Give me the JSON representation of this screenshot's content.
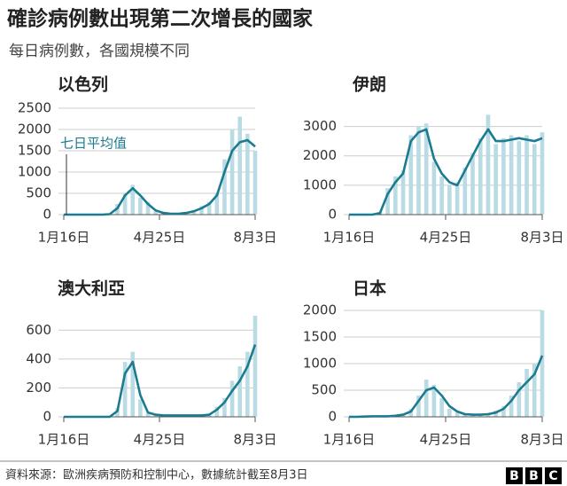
{
  "title": "確診病例數出現第二次增長的國家",
  "subtitle": "每日病例數，各國規模不同",
  "source": "資料來源：歐洲疾病預防和控制中心，數據統計截至8月3日",
  "logo": [
    "B",
    "B",
    "C"
  ],
  "chart_data": [
    {
      "type": "bar-line",
      "title": "以色列",
      "annotation": "七日平均值",
      "x": [
        0,
        8,
        16,
        24,
        32,
        40,
        48,
        56,
        64,
        72,
        80,
        88,
        96,
        104,
        112,
        120,
        128,
        136,
        144,
        152,
        160,
        168,
        176,
        184,
        192,
        200
      ],
      "bar_values": [
        0,
        0,
        0,
        0,
        0,
        0,
        20,
        250,
        500,
        700,
        400,
        300,
        80,
        30,
        10,
        20,
        60,
        100,
        200,
        300,
        500,
        1300,
        2000,
        2300,
        1900,
        1500
      ],
      "values": [
        0,
        0,
        0,
        0,
        0,
        0,
        10,
        150,
        450,
        620,
        450,
        250,
        100,
        40,
        20,
        20,
        40,
        80,
        150,
        250,
        450,
        1000,
        1500,
        1700,
        1750,
        1600
      ],
      "xlim": [
        0,
        200
      ],
      "xticks": [
        {
          "value": 0,
          "label": "1月16日"
        },
        {
          "value": 100,
          "label": "4月25日"
        },
        {
          "value": 200,
          "label": "8月3日"
        }
      ],
      "ylim": [
        0,
        2500
      ],
      "yticks": [
        0,
        500,
        1000,
        1500,
        2000,
        2500
      ],
      "grid": true,
      "color": "#1b7b8f",
      "bar_color": "#b9dbe4"
    },
    {
      "type": "bar-line",
      "title": "伊朗",
      "x": [
        0,
        8,
        16,
        24,
        32,
        40,
        48,
        56,
        64,
        72,
        80,
        88,
        96,
        104,
        112,
        120,
        128,
        136,
        144,
        152,
        160,
        168,
        176,
        184,
        192,
        200
      ],
      "bar_values": [
        0,
        0,
        0,
        0,
        80,
        900,
        1300,
        1500,
        2700,
        3000,
        3100,
        1800,
        1300,
        1000,
        1100,
        1600,
        2100,
        2600,
        3400,
        2400,
        2600,
        2700,
        2500,
        2700,
        2400,
        2800
      ],
      "values": [
        0,
        0,
        0,
        0,
        50,
        700,
        1100,
        1400,
        2500,
        2800,
        2900,
        1900,
        1400,
        1100,
        1000,
        1500,
        2000,
        2500,
        2900,
        2500,
        2500,
        2550,
        2600,
        2550,
        2500,
        2600
      ],
      "xlim": [
        0,
        200
      ],
      "xticks": [
        {
          "value": 0,
          "label": "1月16日"
        },
        {
          "value": 100,
          "label": "4月25日"
        },
        {
          "value": 200,
          "label": "8月3日"
        }
      ],
      "ylim": [
        0,
        3500
      ],
      "yticks": [
        0,
        1000,
        2000,
        3000
      ],
      "grid": true,
      "color": "#1b7b8f",
      "bar_color": "#b9dbe4"
    },
    {
      "type": "bar-line",
      "title": "澳大利亞",
      "x": [
        0,
        8,
        16,
        24,
        32,
        40,
        48,
        56,
        64,
        72,
        80,
        88,
        96,
        104,
        112,
        120,
        128,
        136,
        144,
        152,
        160,
        168,
        176,
        184,
        192,
        200
      ],
      "bar_values": [
        0,
        0,
        0,
        0,
        0,
        0,
        0,
        60,
        380,
        450,
        120,
        25,
        15,
        8,
        12,
        8,
        15,
        10,
        12,
        20,
        70,
        130,
        250,
        350,
        450,
        700
      ],
      "values": [
        0,
        0,
        0,
        0,
        0,
        0,
        0,
        40,
        300,
        380,
        150,
        30,
        15,
        10,
        10,
        10,
        10,
        10,
        10,
        15,
        50,
        100,
        180,
        250,
        350,
        500
      ],
      "xlim": [
        0,
        200
      ],
      "xticks": [
        {
          "value": 0,
          "label": "1月16日"
        },
        {
          "value": 100,
          "label": "4月25日"
        },
        {
          "value": 200,
          "label": "8月3日"
        }
      ],
      "ylim": [
        0,
        700
      ],
      "yticks": [
        0,
        200,
        400,
        600
      ],
      "grid": true,
      "color": "#1b7b8f",
      "bar_color": "#b9dbe4"
    },
    {
      "type": "bar-line",
      "title": "日本",
      "x": [
        0,
        8,
        16,
        24,
        32,
        40,
        48,
        56,
        64,
        72,
        80,
        88,
        96,
        104,
        112,
        120,
        128,
        136,
        144,
        152,
        160,
        168,
        176,
        184,
        192,
        200
      ],
      "bar_values": [
        0,
        0,
        5,
        15,
        10,
        15,
        30,
        60,
        150,
        400,
        700,
        600,
        350,
        150,
        80,
        40,
        50,
        40,
        60,
        120,
        200,
        400,
        650,
        900,
        1000,
        2000
      ],
      "values": [
        0,
        0,
        5,
        10,
        10,
        10,
        20,
        40,
        100,
        300,
        500,
        550,
        400,
        200,
        100,
        50,
        40,
        40,
        50,
        80,
        150,
        300,
        500,
        650,
        800,
        1150
      ],
      "xlim": [
        0,
        200
      ],
      "xticks": [
        {
          "value": 0,
          "label": "1月16日"
        },
        {
          "value": 100,
          "label": "4月25日"
        },
        {
          "value": 200,
          "label": "8月3日"
        }
      ],
      "ylim": [
        0,
        2000
      ],
      "yticks": [
        0,
        500,
        1000,
        1500,
        2000
      ],
      "grid": true,
      "color": "#1b7b8f",
      "bar_color": "#b9dbe4"
    }
  ]
}
